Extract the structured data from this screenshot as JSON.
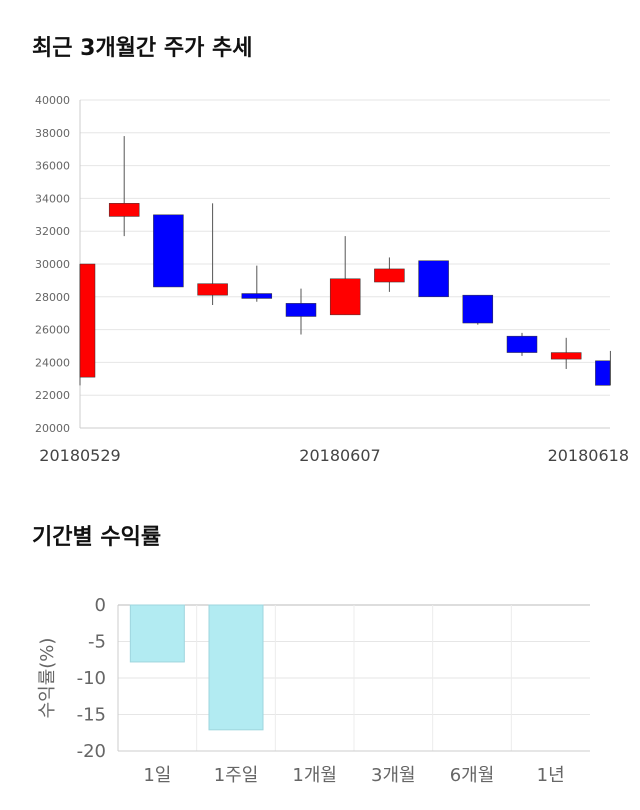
{
  "chart_data": [
    {
      "type": "candlestick",
      "title": "최근 3개월간 주가 추세",
      "ylim": [
        20000,
        40000
      ],
      "yticks": [
        20000,
        22000,
        24000,
        26000,
        28000,
        30000,
        32000,
        34000,
        36000,
        38000,
        40000
      ],
      "xtick_labels": [
        "20180529",
        "20180607",
        "20180618"
      ],
      "up_color": "#ff0000",
      "down_color": "#0000ff",
      "grid": true,
      "candles": [
        {
          "open": 23100,
          "close": 30000,
          "high": 30000,
          "low": 22600
        },
        {
          "open": 32900,
          "close": 33700,
          "high": 37800,
          "low": 31700
        },
        {
          "open": 33000,
          "close": 28600,
          "high": 33000,
          "low": 28600
        },
        {
          "open": 28100,
          "close": 28800,
          "high": 33700,
          "low": 27500
        },
        {
          "open": 28200,
          "close": 27900,
          "high": 29900,
          "low": 27700
        },
        {
          "open": 27600,
          "close": 26800,
          "high": 28500,
          "low": 25700
        },
        {
          "open": 26900,
          "close": 29100,
          "high": 31700,
          "low": 26900
        },
        {
          "open": 28900,
          "close": 29700,
          "high": 30400,
          "low": 28300
        },
        {
          "open": 30200,
          "close": 28000,
          "high": 30200,
          "low": 28000
        },
        {
          "open": 28100,
          "close": 26400,
          "high": 28100,
          "low": 26300
        },
        {
          "open": 25600,
          "close": 24600,
          "high": 25800,
          "low": 24400
        },
        {
          "open": 24200,
          "close": 24600,
          "high": 25500,
          "low": 23600
        },
        {
          "open": 24100,
          "close": 22600,
          "high": 24700,
          "low": 22600
        }
      ]
    },
    {
      "type": "bar",
      "title": "기간별 수익률",
      "categories": [
        "1일",
        "1주일",
        "1개월",
        "3개월",
        "6개월",
        "1년"
      ],
      "values": [
        -7.8,
        -17.1,
        null,
        null,
        null,
        null
      ],
      "ylabel": "수익률(%)",
      "ylim": [
        -20,
        0
      ],
      "yticks": [
        0,
        -5,
        -10,
        -15,
        -20
      ],
      "bar_color": "#b2ebf2",
      "grid": true
    }
  ]
}
